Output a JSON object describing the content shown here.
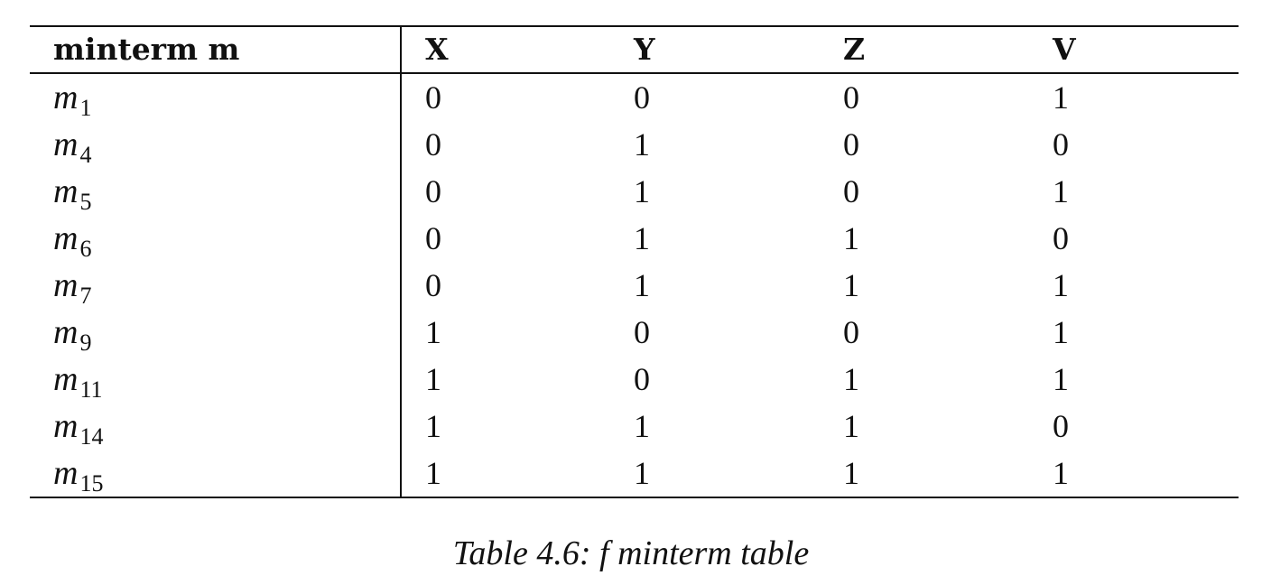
{
  "table": {
    "headers": [
      "minterm m",
      "X",
      "Y",
      "Z",
      "V"
    ],
    "rows": [
      {
        "base": "m",
        "sub": "1",
        "cells": [
          "0",
          "0",
          "0",
          "1"
        ]
      },
      {
        "base": "m",
        "sub": "4",
        "cells": [
          "0",
          "1",
          "0",
          "0"
        ]
      },
      {
        "base": "m",
        "sub": "5",
        "cells": [
          "0",
          "1",
          "0",
          "1"
        ]
      },
      {
        "base": "m",
        "sub": "6",
        "cells": [
          "0",
          "1",
          "1",
          "0"
        ]
      },
      {
        "base": "m",
        "sub": "7",
        "cells": [
          "0",
          "1",
          "1",
          "1"
        ]
      },
      {
        "base": "m",
        "sub": "9",
        "cells": [
          "1",
          "0",
          "0",
          "1"
        ]
      },
      {
        "base": "m",
        "sub": "11",
        "cells": [
          "1",
          "0",
          "1",
          "1"
        ]
      },
      {
        "base": "m",
        "sub": "14",
        "cells": [
          "1",
          "1",
          "1",
          "0"
        ]
      },
      {
        "base": "m",
        "sub": "15",
        "cells": [
          "1",
          "1",
          "1",
          "1"
        ]
      }
    ]
  },
  "caption": "Table 4.6: f minterm table"
}
